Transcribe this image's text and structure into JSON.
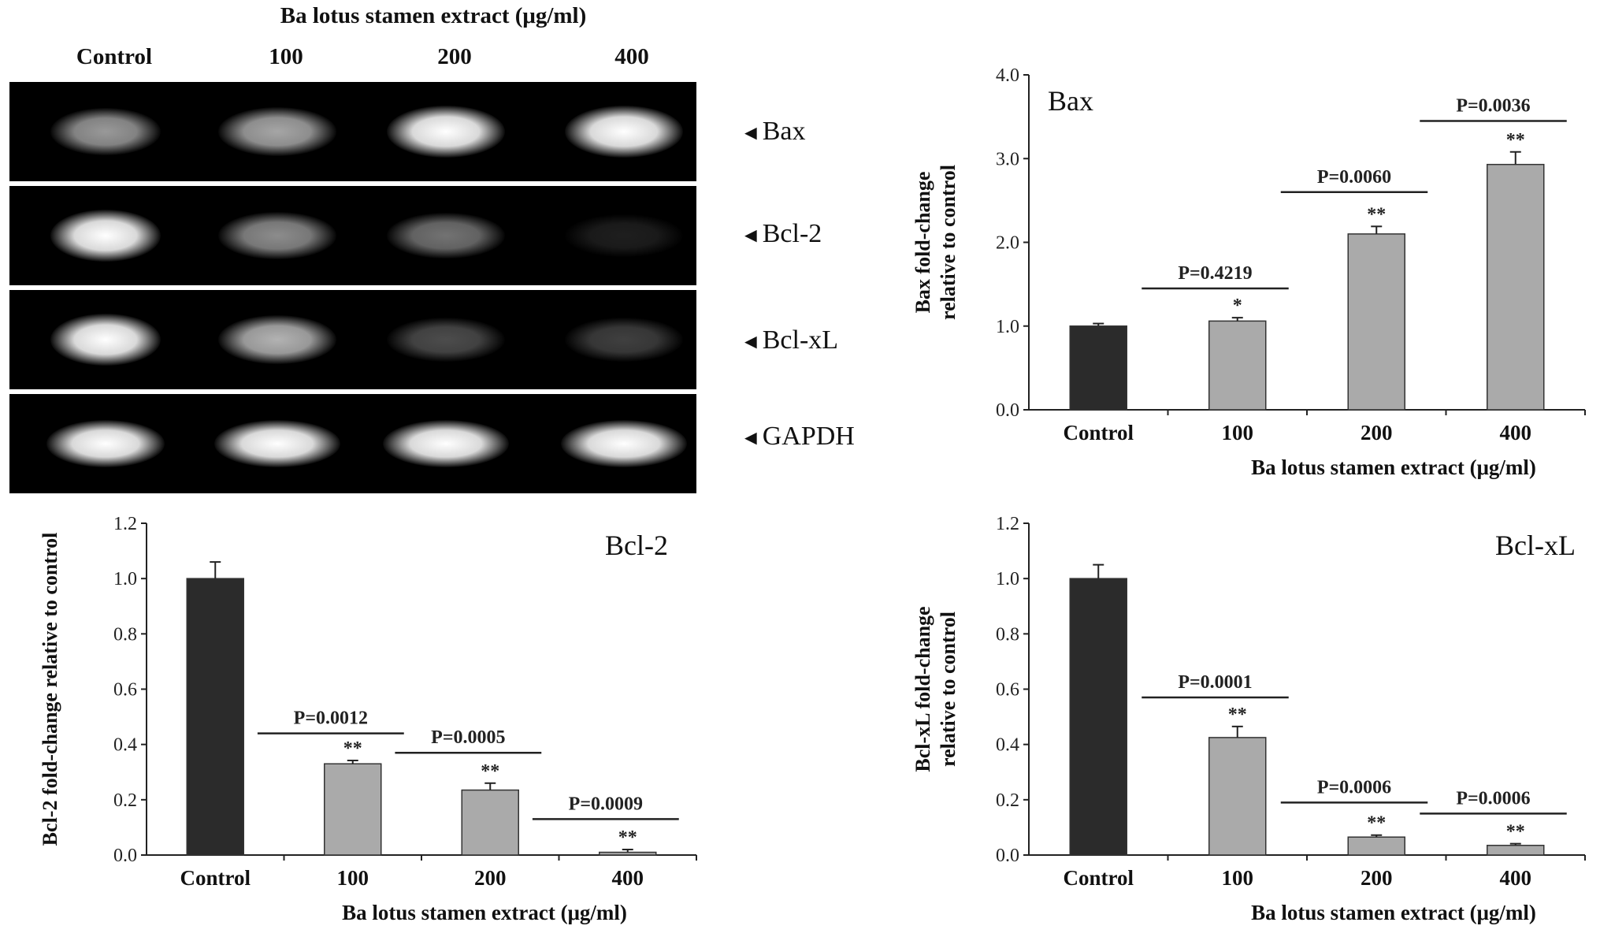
{
  "gel": {
    "title": "Ba lotus stamen extract (μg/ml)",
    "lanes": [
      "Control",
      "100",
      "200",
      "400"
    ],
    "genes": [
      "Bax",
      "Bcl-2",
      "Bcl-xL",
      "GAPDH"
    ],
    "arrow_glyph": "◄",
    "band_intensity": {
      "Bax": [
        0.6,
        0.65,
        1.0,
        1.0
      ],
      "Bcl-2": [
        1.0,
        0.55,
        0.45,
        0.12
      ],
      "Bcl-xL": [
        1.0,
        0.7,
        0.3,
        0.25
      ],
      "GAPDH": [
        1.0,
        1.0,
        1.0,
        1.0
      ]
    }
  },
  "colors": {
    "control_bar": "#2b2b2b",
    "treatment_bar": "#aaaaaa",
    "axis": "#222222"
  },
  "chart_data": [
    {
      "type": "bar",
      "panel": "Bax",
      "title": "Bax",
      "categories": [
        "Control",
        "100",
        "200",
        "400"
      ],
      "values": [
        1.0,
        1.06,
        2.1,
        2.93
      ],
      "errors": [
        0.03,
        0.04,
        0.09,
        0.15
      ],
      "yticks": [
        "0.0",
        "1.0",
        "2.0",
        "3.0",
        "4.0"
      ],
      "ylim": [
        0,
        4
      ],
      "ylabel": [
        "Bax fold-change",
        "relative to control"
      ],
      "xlabel": "Ba lotus stamen extract (μg/ml)",
      "significance": [
        "",
        "*",
        "**",
        "**"
      ],
      "pvalues": [
        "",
        "P=0.4219",
        "P=0.0060",
        "P=0.0036"
      ],
      "pvalue_heights": [
        0,
        1.45,
        2.6,
        3.45
      ],
      "legend": "none",
      "grid": false
    },
    {
      "type": "bar",
      "panel": "Bcl-2",
      "title": "Bcl-2",
      "categories": [
        "Control",
        "100",
        "200",
        "400"
      ],
      "values": [
        1.0,
        0.33,
        0.235,
        0.01
      ],
      "errors": [
        0.06,
        0.012,
        0.025,
        0.01
      ],
      "yticks": [
        "0.0",
        "0.2",
        "0.4",
        "0.6",
        "0.8",
        "1.0",
        "1.2"
      ],
      "ylim": [
        0,
        1.2
      ],
      "ylabel": [
        "Bcl-2 fold-change relative to control"
      ],
      "xlabel": "Ba lotus stamen extract (μg/ml)",
      "significance": [
        "",
        "**",
        "**",
        "**"
      ],
      "pvalues": [
        "",
        "P=0.0012",
        "P=0.0005",
        "P=0.0009"
      ],
      "pvalue_heights": [
        0,
        0.44,
        0.37,
        0.13
      ],
      "legend": "none",
      "grid": false
    },
    {
      "type": "bar",
      "panel": "Bcl-xL",
      "title": "Bcl-xL",
      "categories": [
        "Control",
        "100",
        "200",
        "400"
      ],
      "values": [
        1.0,
        0.425,
        0.065,
        0.035
      ],
      "errors": [
        0.05,
        0.04,
        0.007,
        0.006
      ],
      "yticks": [
        "0.0",
        "0.2",
        "0.4",
        "0.6",
        "0.8",
        "1.0",
        "1.2"
      ],
      "ylim": [
        0,
        1.2
      ],
      "ylabel": [
        "Bcl-xL fold-change",
        "relative to control"
      ],
      "xlabel": "Ba lotus stamen extract (μg/ml)",
      "significance": [
        "",
        "**",
        "**",
        "**"
      ],
      "pvalues": [
        "",
        "P=0.0001",
        "P=0.0006",
        "P=0.0006"
      ],
      "pvalue_heights": [
        0,
        0.57,
        0.19,
        0.15
      ],
      "legend": "none",
      "grid": false
    }
  ]
}
